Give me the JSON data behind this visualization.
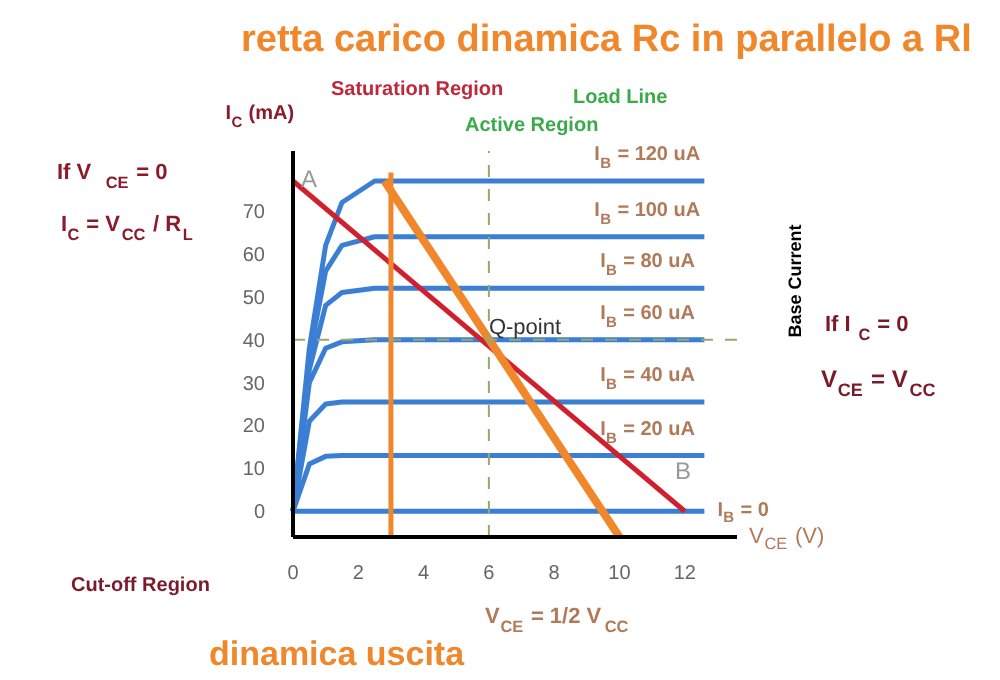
{
  "chart_data": {
    "type": "line",
    "title": "retta carico dinamica Rc in parallelo a Rl",
    "xlabel": "V$_{CE}$ (V)",
    "ylabel": "I$_{C}$ (mA)",
    "y2label": "Base Current",
    "x": [
      0,
      0.5,
      1,
      1.5,
      2.5,
      12.6
    ],
    "series": [
      {
        "name": "I$_{B}$ = 120 uA",
        "color": "#3b7fd4",
        "values": [
          0,
          38,
          62,
          72,
          77,
          77
        ]
      },
      {
        "name": "I$_{B}$ = 100 uA",
        "color": "#3b7fd4",
        "values": [
          0,
          36,
          56,
          62,
          64,
          64
        ]
      },
      {
        "name": "I$_{B}$ = 80  uA",
        "color": "#3b7fd4",
        "values": [
          0,
          33,
          48,
          51,
          52,
          52
        ]
      },
      {
        "name": "I$_{B}$ = 60  uA",
        "color": "#3b7fd4",
        "values": [
          0,
          30,
          38,
          39.5,
          40,
          40
        ]
      },
      {
        "name": "I$_{B}$ = 40  uA",
        "color": "#3b7fd4",
        "values": [
          0,
          21,
          25,
          25.5,
          25.5,
          25.5
        ]
      },
      {
        "name": "I$_{B}$ = 20  uA",
        "color": "#3b7fd4",
        "values": [
          0,
          11,
          12.8,
          13,
          13,
          13
        ]
      },
      {
        "name": "I$_{B}$ = 0",
        "color": "#3b7fd4",
        "values": [
          0,
          0,
          0,
          0,
          0,
          0
        ]
      },
      {
        "color": "#d0202e",
        "x": [
          0,
          12
        ],
        "values": [
          77,
          0
        ]
      },
      {
        "color": "#f0872a",
        "x": [
          2.8,
          10
        ],
        "values": [
          77,
          -6
        ]
      },
      {
        "color": "#f0872a",
        "x": [
          3,
          3
        ],
        "values": [
          79,
          -6
        ]
      }
    ],
    "xlim": [
      0,
      13.6
    ],
    "ylim": [
      -6,
      84
    ],
    "xticks": [
      0,
      2,
      4,
      6,
      8,
      10,
      12
    ],
    "yticks": [
      0,
      10,
      20,
      30,
      40,
      50,
      60,
      70
    ],
    "ref_lines": [
      {
        "axis": "y",
        "value": 40,
        "color": "#9aa870",
        "line_style": "dashed"
      },
      {
        "axis": "x",
        "value": 6,
        "color": "#9aa870",
        "line_style": "dashed"
      }
    ],
    "annotations": [
      "Saturation Region",
      "Active Region",
      "Load Line",
      {
        "text": "Q-point",
        "x": 6,
        "y": 40
      },
      "Cut-off Region",
      "If   V$_{CE}$ =  0",
      "I$_{C}$ = V$_{CC}$ / R$_{L}$",
      "If  I$_{C}$ = 0",
      "V$_{CE}$ = V$_{CC}$",
      "V$_{CE}$ = 1/2 V$_{CC}$",
      "dinamica uscita",
      "A",
      "B"
    ],
    "grid": false,
    "marker": "none",
    "line_style": "solid"
  }
}
